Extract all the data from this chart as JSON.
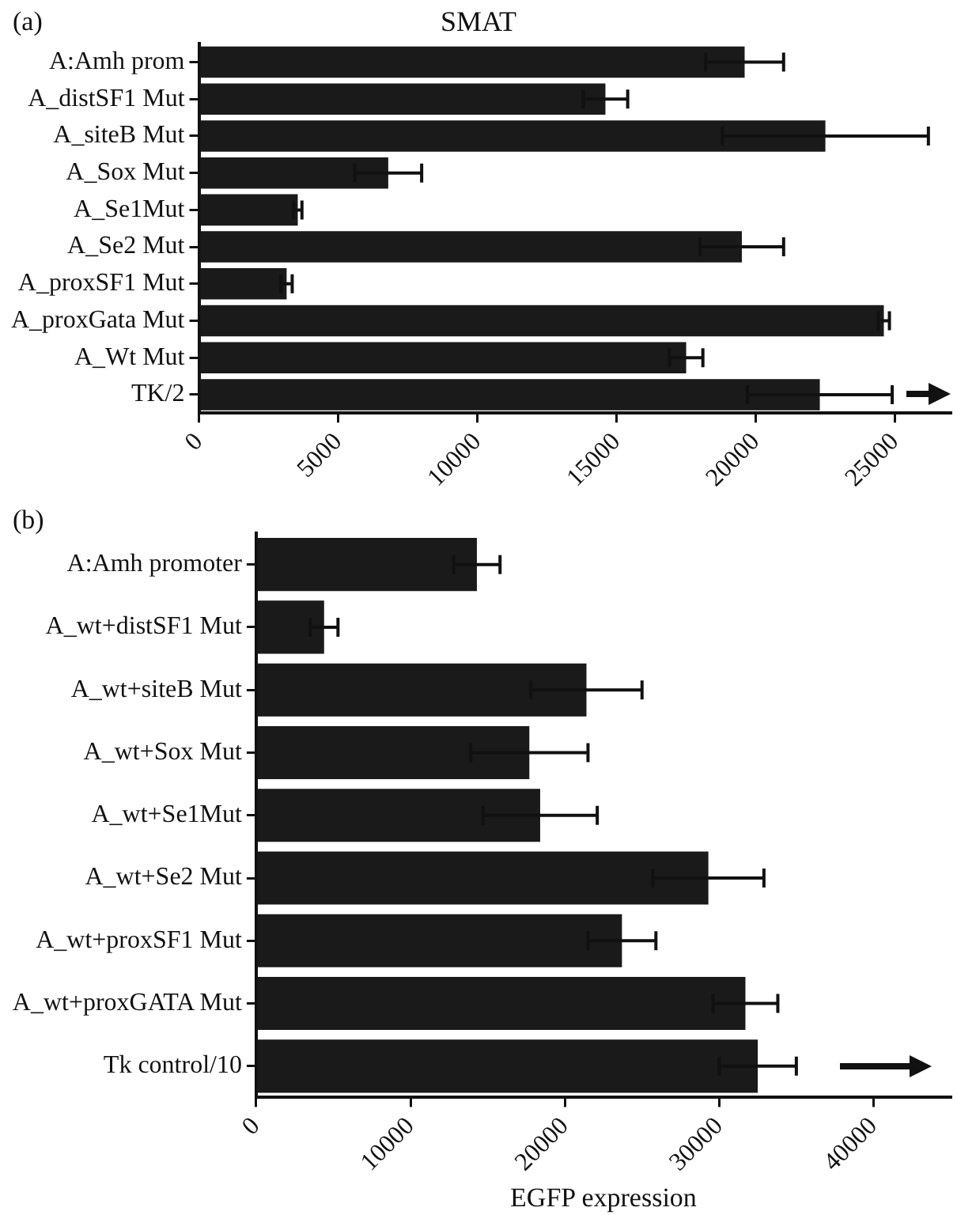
{
  "chart_data": [
    {
      "type": "bar",
      "orientation": "horizontal",
      "title": "SMAT",
      "annotations": [
        "(a)"
      ],
      "categories": [
        "A:Amh prom",
        "A_distSF1 Mut",
        "A_siteB Mut",
        "A_Sox Mut",
        "A_Se1Mut",
        "A_Se2 Mut",
        "A_proxSF1 Mut",
        "A_proxGata Mut",
        "A_Wt Mut",
        "TK/2"
      ],
      "values": [
        19600,
        14600,
        22500,
        6800,
        3550,
        19500,
        3150,
        24600,
        17500,
        22300
      ],
      "errors": [
        1400,
        800,
        3700,
        1200,
        150,
        1500,
        200,
        200,
        600,
        2600
      ],
      "color": "#1a1a1a",
      "xlim": [
        0,
        27000
      ],
      "xticks": [
        0,
        5000,
        10000,
        15000,
        20000,
        25000
      ],
      "grid": false
    },
    {
      "type": "bar",
      "orientation": "horizontal",
      "xlabel": "EGFP expression",
      "annotations": [
        "(b)"
      ],
      "categories": [
        "A:Amh promoter",
        "A_wt+distSF1 Mut",
        "A_wt+siteB Mut",
        "A_wt+Sox Mut",
        "A_wt+Se1Mut",
        "A_wt+Se2 Mut",
        "A_wt+proxSF1 Mut",
        "A_wt+proxGATA Mut",
        "Tk control/10"
      ],
      "values": [
        14300,
        4400,
        21400,
        17700,
        18400,
        29300,
        23700,
        31700,
        32500
      ],
      "errors": [
        1500,
        900,
        3600,
        3800,
        3700,
        3600,
        2200,
        2100,
        2500
      ],
      "color": "#1a1a1a",
      "xlim": [
        0,
        45000
      ],
      "xticks": [
        0,
        10000,
        20000,
        30000,
        40000
      ],
      "grid": false
    }
  ]
}
